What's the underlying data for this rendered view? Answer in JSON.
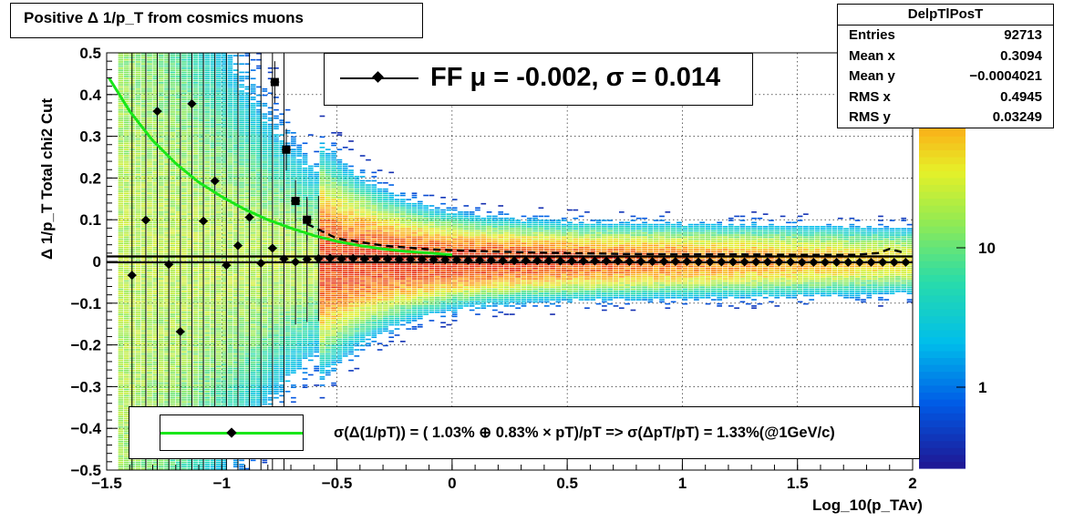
{
  "chart_data": {
    "type": "heatmap",
    "title": "Positive Δ 1/p_T from cosmics muons",
    "xlabel": "Log_10(p_TAv)",
    "ylabel": "Δ 1/p_T  Total chi2 Cut",
    "xlim": [
      -1.5,
      2.0
    ],
    "ylim": [
      -0.5,
      0.5
    ],
    "x_ticks": [
      "−1.5",
      "−1",
      "−0.5",
      "0",
      "0.5",
      "1",
      "1.5",
      "2"
    ],
    "y_ticks": [
      "−0.5",
      "−0.4",
      "−0.3",
      "−0.2",
      "−0.1",
      "0",
      "0.1",
      "0.2",
      "0.3",
      "0.4",
      "0.5"
    ],
    "z_scale": "log",
    "z_ticks": [
      "1",
      "10"
    ],
    "grid": true,
    "stats": {
      "name": "DelpTlPosT",
      "entries": [
        {
          "label": "Entries",
          "value": "92713"
        },
        {
          "label": "Mean x",
          "value": "0.3094"
        },
        {
          "label": "Mean y",
          "value": "−0.0004021"
        },
        {
          "label": "RMS x",
          "value": "0.4945"
        },
        {
          "label": "RMS y",
          "value": "0.03249"
        }
      ]
    },
    "fit_legend": "FF μ = -0.002, σ =   0.014",
    "resolution_legend": "σ(Δ(1/pT)) = ( 1.03% ⊕  0.83% × pT)/pT => σ(ΔpT/pT) =  1.33%(@1GeV/c)",
    "horizontal_lines": [
      0.012,
      -0.002
    ],
    "profile_points": {
      "x": [
        -1.39,
        -1.33,
        -1.28,
        -1.23,
        -1.18,
        -1.13,
        -1.08,
        -1.03,
        -0.98,
        -0.93,
        -0.88,
        -0.83,
        -0.78,
        -0.73,
        -0.68,
        -0.63,
        -0.58,
        -0.53,
        -0.48,
        -0.43,
        -0.38,
        -0.33,
        -0.28,
        -0.23,
        -0.18,
        -0.13,
        -0.08,
        -0.03,
        0.02,
        0.07,
        0.12,
        0.17,
        0.22,
        0.27,
        0.32,
        0.37,
        0.42,
        0.47,
        0.52,
        0.57,
        0.62,
        0.67,
        0.72,
        0.77,
        0.82,
        0.87,
        0.92,
        0.97,
        1.02,
        1.07,
        1.12,
        1.17,
        1.22,
        1.27,
        1.32,
        1.37,
        1.42,
        1.47,
        1.52,
        1.57,
        1.62,
        1.67,
        1.72,
        1.77,
        1.82,
        1.87,
        1.92,
        1.97
      ],
      "y": [
        -0.033,
        0.099,
        0.36,
        -0.007,
        -0.168,
        0.378,
        0.097,
        0.193,
        -0.009,
        0.038,
        0.106,
        -0.004,
        0.032,
        0.006,
        -0.001,
        0.005,
        0.007,
        0.008,
        0.006,
        0.007,
        0.006,
        0.006,
        0.006,
        0.005,
        0.005,
        0.005,
        0.004,
        0.004,
        0.004,
        0.003,
        0.003,
        0.003,
        0.002,
        0.002,
        0.002,
        0.002,
        0.002,
        0.001,
        0.001,
        0.001,
        0.001,
        0.001,
        0.001,
        0.0,
        0.0,
        0.0,
        0.0,
        0.0,
        0.0,
        -0.001,
        -0.001,
        -0.001,
        -0.001,
        -0.001,
        -0.001,
        -0.001,
        -0.001,
        -0.001,
        -0.002,
        -0.002,
        -0.002,
        -0.002,
        -0.002,
        -0.002,
        -0.002,
        -0.002,
        -0.002,
        -0.002
      ]
    },
    "sigma_points": {
      "x": [
        -0.77,
        -0.72,
        -0.68,
        -0.63
      ],
      "y": [
        0.43,
        0.268,
        0.145,
        0.1
      ]
    },
    "sigma_dashed": {
      "x": [
        -0.63,
        -0.5,
        -0.3,
        -0.1,
        0.1,
        0.3,
        0.5,
        0.75,
        1.0,
        1.25,
        1.5,
        1.75,
        1.85,
        1.9,
        1.97
      ],
      "y": [
        0.09,
        0.055,
        0.038,
        0.029,
        0.025,
        0.022,
        0.02,
        0.018,
        0.017,
        0.017,
        0.016,
        0.016,
        0.02,
        0.03,
        0.02
      ]
    },
    "fit_curve": {
      "x": [
        -1.49,
        -1.4,
        -1.3,
        -1.2,
        -1.1,
        -1.0,
        -0.9,
        -0.8,
        -0.7,
        -0.6,
        -0.5,
        -0.4,
        -0.3,
        -0.2,
        -0.1,
        0.0
      ],
      "y": [
        0.44,
        0.36,
        0.29,
        0.235,
        0.19,
        0.155,
        0.125,
        0.1,
        0.08,
        0.062,
        0.048,
        0.038,
        0.03,
        0.024,
        0.02,
        0.016
      ]
    }
  }
}
